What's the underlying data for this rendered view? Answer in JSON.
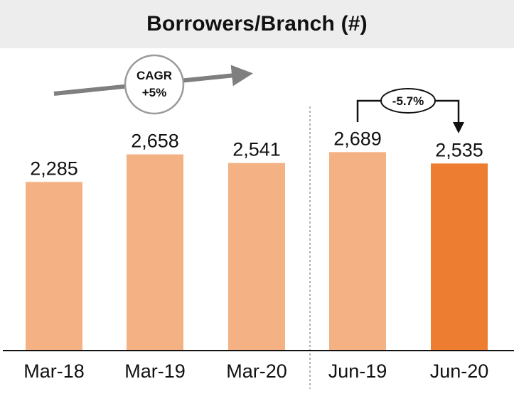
{
  "chart_data": {
    "type": "bar",
    "title": "Borrowers/Branch (#)",
    "categories": [
      "Mar-18",
      "Mar-19",
      "Mar-20",
      "Jun-19",
      "Jun-20"
    ],
    "values": [
      2285,
      2658,
      2541,
      2689,
      2535
    ],
    "value_labels": [
      "2,285",
      "2,658",
      "2,541",
      "2,689",
      "2,535"
    ],
    "highlight_index": 4,
    "groups": [
      {
        "categories": [
          "Mar-18",
          "Mar-19",
          "Mar-20"
        ]
      },
      {
        "categories": [
          "Jun-19",
          "Jun-20"
        ]
      }
    ],
    "ylim": [
      0,
      3500
    ],
    "grid": false,
    "annotations": [
      {
        "type": "cagr",
        "line1": "CAGR",
        "line2": "+5%"
      },
      {
        "type": "change",
        "text": "-5.7%",
        "from": "Jun-19",
        "to": "Jun-20"
      }
    ]
  },
  "colors": {
    "bar": "#f4b183",
    "highlight": "#ed7d31",
    "title_background": "#ededed",
    "arrow": "#7f7f7f"
  }
}
